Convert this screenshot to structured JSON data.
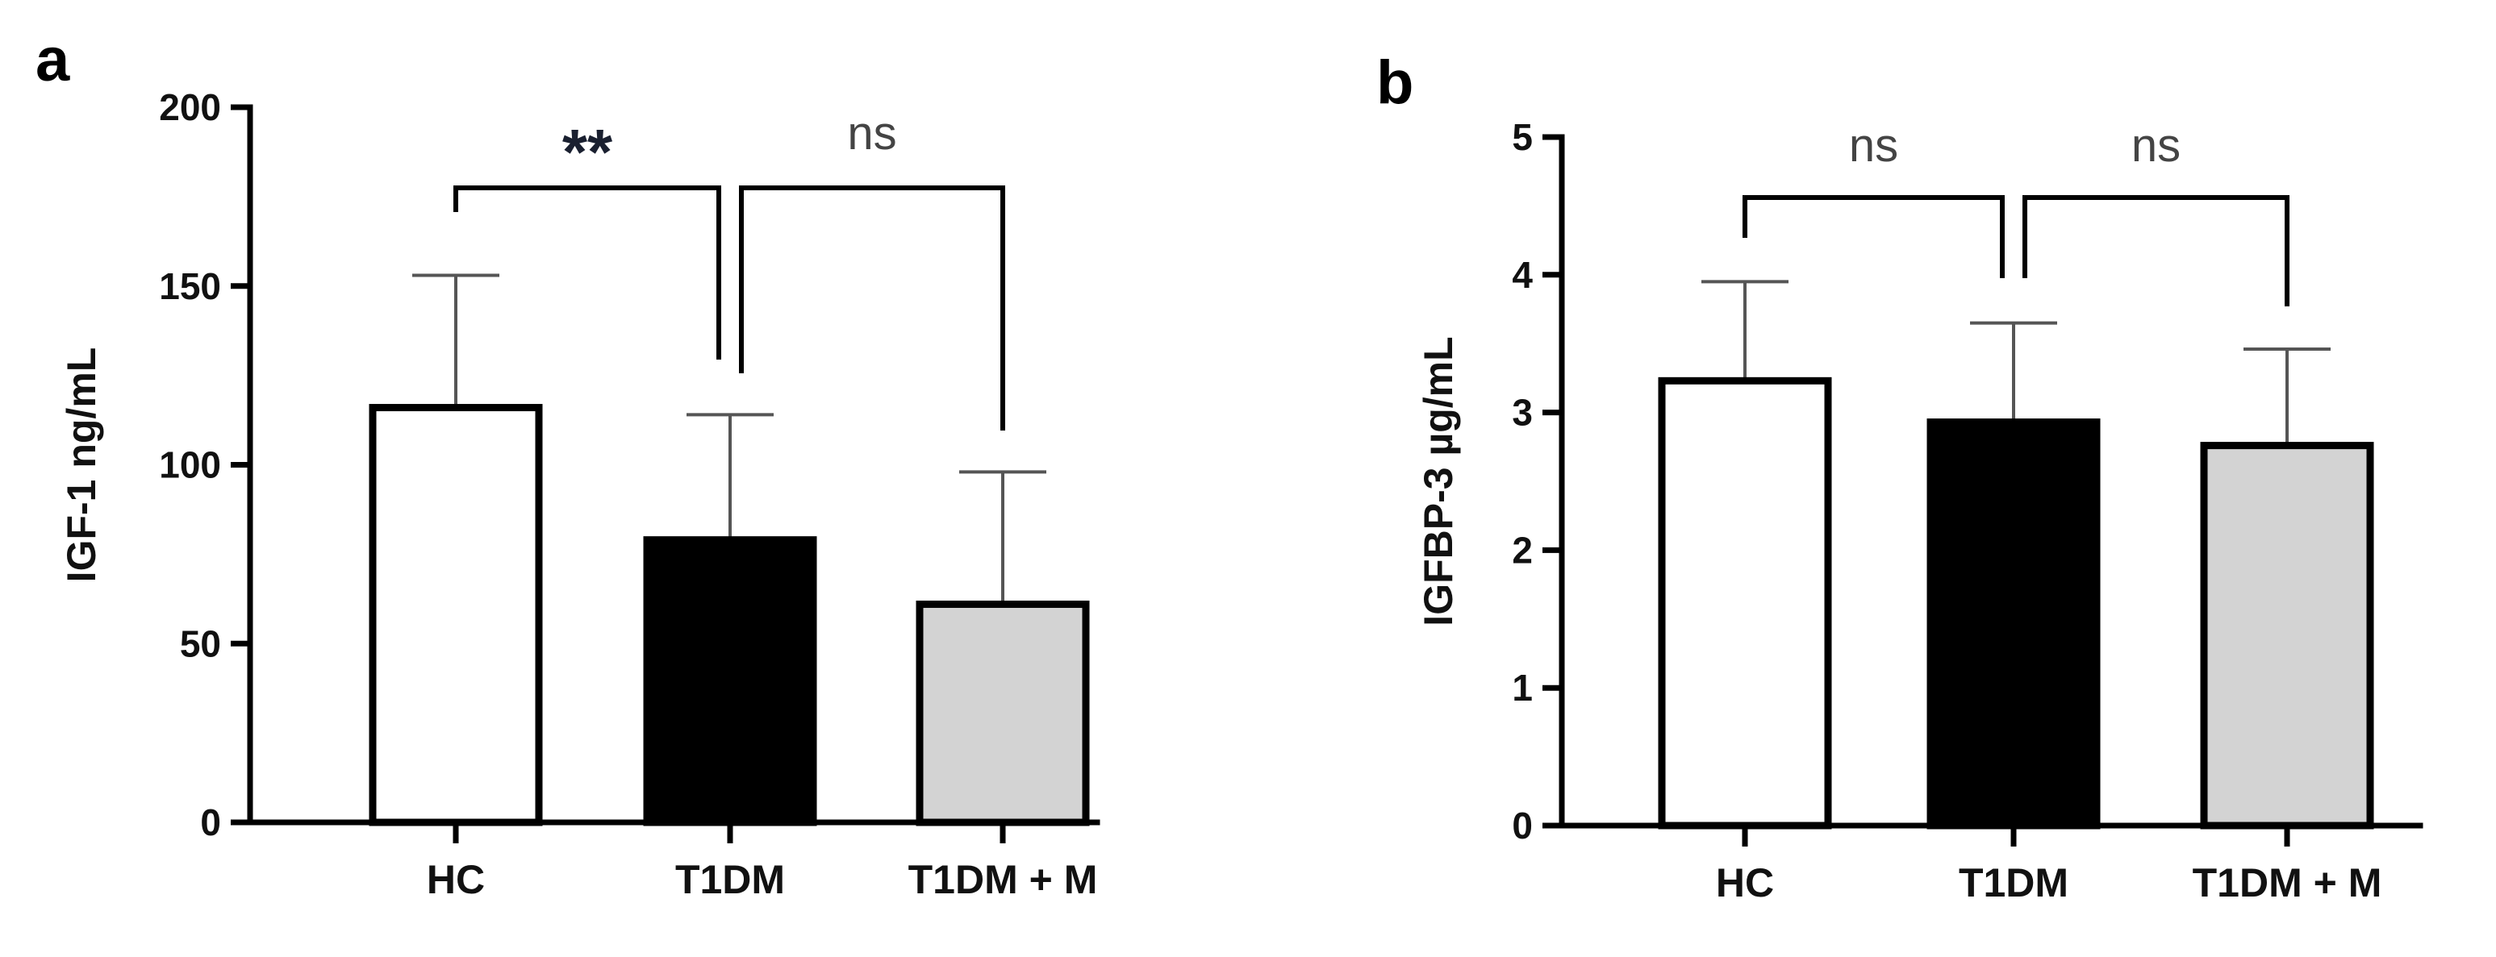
{
  "chart_data": [
    {
      "type": "bar",
      "panel_label": "a",
      "ylabel": "IGF-1 ng/mL",
      "categories": [
        "HC",
        "T1DM",
        "T1DM + M"
      ],
      "values": [
        116,
        79,
        61
      ],
      "error_upper": [
        153,
        114,
        98
      ],
      "bar_colors": [
        "#ffffff",
        "#000000",
        "#d3d3d3"
      ],
      "ylim": [
        0,
        200
      ],
      "yticks": [
        0,
        50,
        100,
        150,
        200
      ],
      "ytick_labels": [
        "0",
        "50",
        "100",
        "150",
        "200"
      ],
      "grid": false,
      "comparisons": [
        {
          "from": 0,
          "to": 1,
          "label": "**"
        },
        {
          "from": 1,
          "to": 2,
          "label": "ns"
        }
      ]
    },
    {
      "type": "bar",
      "panel_label": "b",
      "ylabel": "IGFBP-3 µg/mL",
      "categories": [
        "HC",
        "T1DM",
        "T1DM + M"
      ],
      "values": [
        3.23,
        2.93,
        2.76
      ],
      "error_upper": [
        3.95,
        3.65,
        3.46
      ],
      "bar_colors": [
        "#ffffff",
        "#000000",
        "#d3d3d3"
      ],
      "ylim": [
        0,
        5
      ],
      "yticks": [
        0,
        1,
        2,
        3,
        4,
        5
      ],
      "ytick_labels": [
        "0",
        "1",
        "2",
        "3",
        "4",
        "5"
      ],
      "grid": false,
      "comparisons": [
        {
          "from": 0,
          "to": 1,
          "label": "ns"
        },
        {
          "from": 1,
          "to": 2,
          "label": "ns"
        }
      ]
    }
  ]
}
